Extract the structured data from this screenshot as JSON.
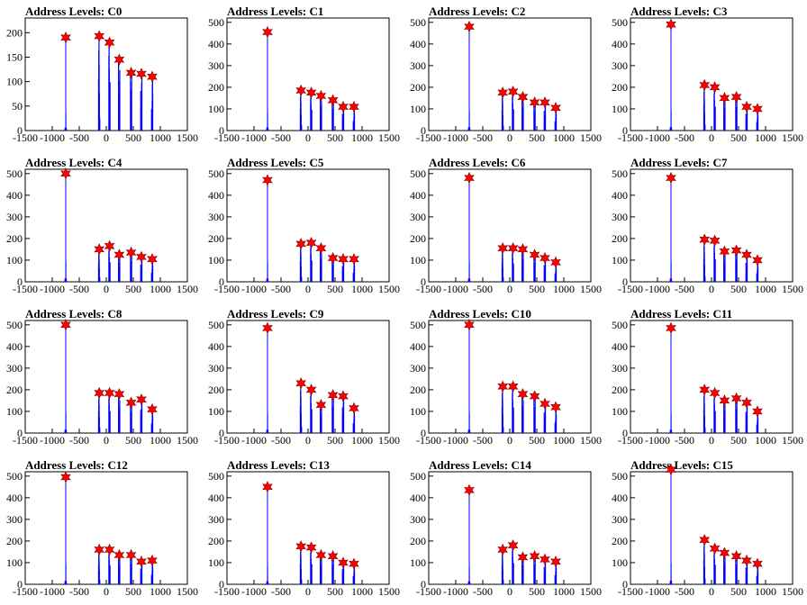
{
  "colors": {
    "histogram": "#0000ff",
    "peak_marker": "#ff0000",
    "frame": "#000000",
    "background": "#ffffff"
  },
  "chart_data": [
    {
      "type": "histogram",
      "title": "Address Levels: C0",
      "x_ticks": [
        "-1500",
        "-1000",
        "-500",
        "0",
        "500",
        "1000",
        "1500"
      ],
      "y_ticks": [
        "0",
        "50",
        "100",
        "150",
        "200"
      ],
      "xlim": [
        -1500,
        1500
      ],
      "ylim": [
        0,
        230
      ],
      "peaks": [
        {
          "x": -750,
          "y": 190
        },
        {
          "x": -130,
          "y": 193
        },
        {
          "x": 60,
          "y": 180
        },
        {
          "x": 240,
          "y": 145
        },
        {
          "x": 460,
          "y": 118
        },
        {
          "x": 650,
          "y": 116
        },
        {
          "x": 850,
          "y": 110
        }
      ]
    },
    {
      "type": "histogram",
      "title": "Address Levels: C1",
      "x_ticks": [
        "-1500",
        "-1000",
        "-500",
        "0",
        "500",
        "1000",
        "1500"
      ],
      "y_ticks": [
        "0",
        "100",
        "200",
        "300",
        "400",
        "500"
      ],
      "xlim": [
        -1500,
        1500
      ],
      "ylim": [
        0,
        520
      ],
      "peaks": [
        {
          "x": -750,
          "y": 455
        },
        {
          "x": -130,
          "y": 185
        },
        {
          "x": 60,
          "y": 175
        },
        {
          "x": 240,
          "y": 160
        },
        {
          "x": 460,
          "y": 140
        },
        {
          "x": 650,
          "y": 110
        },
        {
          "x": 850,
          "y": 110
        }
      ]
    },
    {
      "type": "histogram",
      "title": "Address Levels: C2",
      "x_ticks": [
        "-1500",
        "-1000",
        "-500",
        "0",
        "500",
        "1000",
        "1500"
      ],
      "y_ticks": [
        "0",
        "100",
        "200",
        "300",
        "400",
        "500"
      ],
      "xlim": [
        -1500,
        1500
      ],
      "ylim": [
        0,
        520
      ],
      "peaks": [
        {
          "x": -750,
          "y": 480
        },
        {
          "x": -130,
          "y": 175
        },
        {
          "x": 60,
          "y": 180
        },
        {
          "x": 240,
          "y": 155
        },
        {
          "x": 460,
          "y": 130
        },
        {
          "x": 650,
          "y": 130
        },
        {
          "x": 850,
          "y": 105
        }
      ]
    },
    {
      "type": "histogram",
      "title": "Address Levels: C3",
      "x_ticks": [
        "-1500",
        "-1000",
        "-500",
        "0",
        "500",
        "1000",
        "1500"
      ],
      "y_ticks": [
        "0",
        "100",
        "200",
        "300",
        "400",
        "500"
      ],
      "xlim": [
        -1500,
        1500
      ],
      "ylim": [
        0,
        520
      ],
      "peaks": [
        {
          "x": -750,
          "y": 490
        },
        {
          "x": -130,
          "y": 210
        },
        {
          "x": 60,
          "y": 200
        },
        {
          "x": 240,
          "y": 150
        },
        {
          "x": 460,
          "y": 155
        },
        {
          "x": 650,
          "y": 110
        },
        {
          "x": 850,
          "y": 100
        }
      ]
    },
    {
      "type": "histogram",
      "title": "Address Levels: C4",
      "x_ticks": [
        "-1500",
        "-1000",
        "-500",
        "0",
        "500",
        "1000",
        "1500"
      ],
      "y_ticks": [
        "0",
        "100",
        "200",
        "300",
        "400",
        "500"
      ],
      "xlim": [
        -1500,
        1500
      ],
      "ylim": [
        0,
        520
      ],
      "peaks": [
        {
          "x": -750,
          "y": 500
        },
        {
          "x": -130,
          "y": 150
        },
        {
          "x": 60,
          "y": 165
        },
        {
          "x": 240,
          "y": 125
        },
        {
          "x": 460,
          "y": 135
        },
        {
          "x": 650,
          "y": 115
        },
        {
          "x": 850,
          "y": 105
        }
      ]
    },
    {
      "type": "histogram",
      "title": "Address Levels: C5",
      "x_ticks": [
        "-1500",
        "-1000",
        "-500",
        "0",
        "500",
        "1000",
        "1500"
      ],
      "y_ticks": [
        "0",
        "100",
        "200",
        "300",
        "400",
        "500"
      ],
      "xlim": [
        -1500,
        1500
      ],
      "ylim": [
        0,
        520
      ],
      "peaks": [
        {
          "x": -750,
          "y": 470
        },
        {
          "x": -130,
          "y": 175
        },
        {
          "x": 60,
          "y": 180
        },
        {
          "x": 240,
          "y": 155
        },
        {
          "x": 460,
          "y": 110
        },
        {
          "x": 650,
          "y": 105
        },
        {
          "x": 850,
          "y": 105
        }
      ]
    },
    {
      "type": "histogram",
      "title": "Address Levels: C6",
      "x_ticks": [
        "-1500",
        "-1000",
        "-500",
        "0",
        "500",
        "1000",
        "1500"
      ],
      "y_ticks": [
        "0",
        "100",
        "200",
        "300",
        "400",
        "500"
      ],
      "xlim": [
        -1500,
        1500
      ],
      "ylim": [
        0,
        520
      ],
      "peaks": [
        {
          "x": -750,
          "y": 480
        },
        {
          "x": -130,
          "y": 155
        },
        {
          "x": 60,
          "y": 155
        },
        {
          "x": 240,
          "y": 150
        },
        {
          "x": 460,
          "y": 125
        },
        {
          "x": 650,
          "y": 110
        },
        {
          "x": 850,
          "y": 90
        }
      ]
    },
    {
      "type": "histogram",
      "title": "Address Levels: C7",
      "x_ticks": [
        "-1500",
        "-1000",
        "-500",
        "0",
        "500",
        "1000",
        "1500"
      ],
      "y_ticks": [
        "0",
        "100",
        "200",
        "300",
        "400",
        "500"
      ],
      "xlim": [
        -1500,
        1500
      ],
      "ylim": [
        0,
        520
      ],
      "peaks": [
        {
          "x": -750,
          "y": 480
        },
        {
          "x": -130,
          "y": 195
        },
        {
          "x": 60,
          "y": 190
        },
        {
          "x": 240,
          "y": 140
        },
        {
          "x": 460,
          "y": 145
        },
        {
          "x": 650,
          "y": 125
        },
        {
          "x": 850,
          "y": 100
        }
      ]
    },
    {
      "type": "histogram",
      "title": "Address Levels: C8",
      "x_ticks": [
        "-1500",
        "-1000",
        "-500",
        "0",
        "500",
        "1000",
        "1500"
      ],
      "y_ticks": [
        "0",
        "100",
        "200",
        "300",
        "400",
        "500"
      ],
      "xlim": [
        -1500,
        1500
      ],
      "ylim": [
        0,
        520
      ],
      "peaks": [
        {
          "x": -750,
          "y": 500
        },
        {
          "x": -130,
          "y": 185
        },
        {
          "x": 60,
          "y": 185
        },
        {
          "x": 240,
          "y": 180
        },
        {
          "x": 460,
          "y": 140
        },
        {
          "x": 650,
          "y": 155
        },
        {
          "x": 850,
          "y": 110
        }
      ]
    },
    {
      "type": "histogram",
      "title": "Address Levels: C9",
      "x_ticks": [
        "-1500",
        "-1000",
        "-500",
        "0",
        "500",
        "1000",
        "1500"
      ],
      "y_ticks": [
        "0",
        "100",
        "200",
        "300",
        "400",
        "500"
      ],
      "xlim": [
        -1500,
        1500
      ],
      "ylim": [
        0,
        520
      ],
      "peaks": [
        {
          "x": -750,
          "y": 485
        },
        {
          "x": -130,
          "y": 230
        },
        {
          "x": 60,
          "y": 200
        },
        {
          "x": 240,
          "y": 130
        },
        {
          "x": 460,
          "y": 175
        },
        {
          "x": 650,
          "y": 170
        },
        {
          "x": 850,
          "y": 115
        }
      ]
    },
    {
      "type": "histogram",
      "title": "Address Levels: C10",
      "x_ticks": [
        "-1500",
        "-1000",
        "-500",
        "0",
        "500",
        "1000",
        "1500"
      ],
      "y_ticks": [
        "0",
        "100",
        "200",
        "300",
        "400",
        "500"
      ],
      "xlim": [
        -1500,
        1500
      ],
      "ylim": [
        0,
        520
      ],
      "peaks": [
        {
          "x": -750,
          "y": 500
        },
        {
          "x": -130,
          "y": 215
        },
        {
          "x": 60,
          "y": 215
        },
        {
          "x": 240,
          "y": 180
        },
        {
          "x": 460,
          "y": 170
        },
        {
          "x": 650,
          "y": 135
        },
        {
          "x": 850,
          "y": 120
        }
      ]
    },
    {
      "type": "histogram",
      "title": "Address Levels: C11",
      "x_ticks": [
        "-1500",
        "-1000",
        "-500",
        "0",
        "500",
        "1000",
        "1500"
      ],
      "y_ticks": [
        "0",
        "100",
        "200",
        "300",
        "400",
        "500"
      ],
      "xlim": [
        -1500,
        1500
      ],
      "ylim": [
        0,
        520
      ],
      "peaks": [
        {
          "x": -750,
          "y": 485
        },
        {
          "x": -130,
          "y": 200
        },
        {
          "x": 60,
          "y": 185
        },
        {
          "x": 240,
          "y": 150
        },
        {
          "x": 460,
          "y": 160
        },
        {
          "x": 650,
          "y": 140
        },
        {
          "x": 850,
          "y": 100
        }
      ]
    },
    {
      "type": "histogram",
      "title": "Address Levels: C12",
      "x_ticks": [
        "-1500",
        "-1000",
        "-500",
        "0",
        "500",
        "1000",
        "1500"
      ],
      "y_ticks": [
        "0",
        "100",
        "200",
        "300",
        "400",
        "500"
      ],
      "xlim": [
        -1500,
        1500
      ],
      "ylim": [
        0,
        520
      ],
      "peaks": [
        {
          "x": -750,
          "y": 495
        },
        {
          "x": -130,
          "y": 160
        },
        {
          "x": 60,
          "y": 160
        },
        {
          "x": 240,
          "y": 135
        },
        {
          "x": 460,
          "y": 135
        },
        {
          "x": 650,
          "y": 105
        },
        {
          "x": 850,
          "y": 110
        }
      ]
    },
    {
      "type": "histogram",
      "title": "Address Levels: C13",
      "x_ticks": [
        "-1500",
        "-1000",
        "-500",
        "0",
        "500",
        "1000",
        "1500"
      ],
      "y_ticks": [
        "0",
        "100",
        "200",
        "300",
        "400",
        "500"
      ],
      "xlim": [
        -1500,
        1500
      ],
      "ylim": [
        0,
        520
      ],
      "peaks": [
        {
          "x": -750,
          "y": 450
        },
        {
          "x": -130,
          "y": 175
        },
        {
          "x": 60,
          "y": 170
        },
        {
          "x": 240,
          "y": 135
        },
        {
          "x": 460,
          "y": 130
        },
        {
          "x": 650,
          "y": 100
        },
        {
          "x": 850,
          "y": 95
        }
      ]
    },
    {
      "type": "histogram",
      "title": "Address Levels: C14",
      "x_ticks": [
        "-1500",
        "-1000",
        "-500",
        "0",
        "500",
        "1000",
        "1500"
      ],
      "y_ticks": [
        "0",
        "100",
        "200",
        "300",
        "400",
        "500"
      ],
      "xlim": [
        -1500,
        1500
      ],
      "ylim": [
        0,
        520
      ],
      "peaks": [
        {
          "x": -750,
          "y": 435
        },
        {
          "x": -130,
          "y": 160
        },
        {
          "x": 60,
          "y": 180
        },
        {
          "x": 240,
          "y": 125
        },
        {
          "x": 460,
          "y": 130
        },
        {
          "x": 650,
          "y": 115
        },
        {
          "x": 850,
          "y": 105
        }
      ]
    },
    {
      "type": "histogram",
      "title": "Address Levels: C15",
      "x_ticks": [
        "-1500",
        "-1000",
        "-500",
        "0",
        "500",
        "1000",
        "1500"
      ],
      "y_ticks": [
        "0",
        "100",
        "200",
        "300",
        "400",
        "500"
      ],
      "xlim": [
        -1500,
        1500
      ],
      "ylim": [
        0,
        520
      ],
      "peaks": [
        {
          "x": -750,
          "y": 530
        },
        {
          "x": -130,
          "y": 205
        },
        {
          "x": 60,
          "y": 165
        },
        {
          "x": 240,
          "y": 145
        },
        {
          "x": 460,
          "y": 130
        },
        {
          "x": 650,
          "y": 110
        },
        {
          "x": 850,
          "y": 95
        }
      ]
    }
  ]
}
